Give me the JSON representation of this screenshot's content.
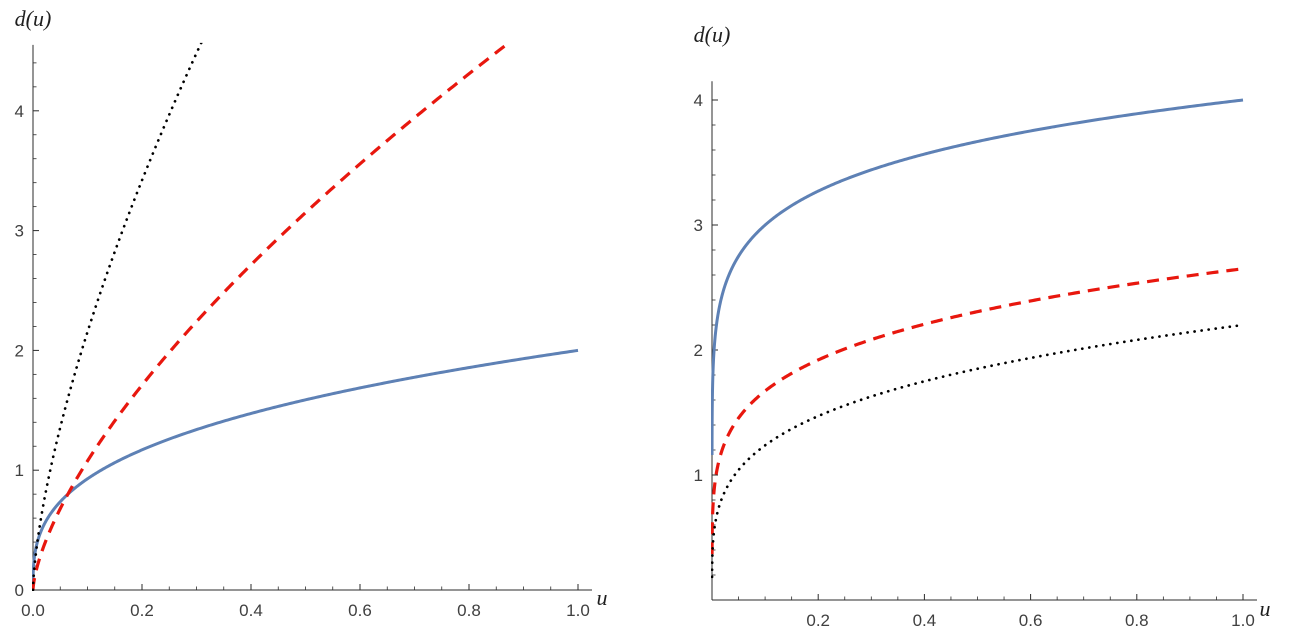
{
  "page": {
    "background": "#ffffff"
  },
  "chart_data": [
    {
      "type": "line",
      "title": "",
      "xlabel": "u",
      "ylabel": "d(u)",
      "xlim": [
        0,
        1
      ],
      "ylim": [
        0,
        4.55
      ],
      "x_ticks": [
        0,
        0.2,
        0.4,
        0.6,
        0.8,
        1
      ],
      "x_tick_labels": [
        "0.0",
        "0.2",
        "0.4",
        "0.6",
        "0.8",
        "1.0"
      ],
      "y_ticks": [
        0,
        1,
        2,
        3,
        4
      ],
      "y_tick_labels": [
        "0",
        "1",
        "2",
        "3",
        "4"
      ],
      "x_minor_step": 0.05,
      "y_minor_step": 0.2,
      "grid": false,
      "legend": "none",
      "series": [
        {
          "name": "blue-solid",
          "style": "solid",
          "color": "#5e81b5",
          "fit": {
            "c": 2,
            "p": 0.3333
          },
          "x": [
            0,
            0.0025,
            0.01,
            0.025,
            0.05,
            0.1,
            0.15,
            0.2,
            0.3,
            0.4,
            0.5,
            0.6,
            0.7,
            0.8,
            0.9,
            1.0
          ],
          "y": [
            0,
            0.27,
            0.43,
            0.58,
            0.74,
            0.93,
            1.06,
            1.17,
            1.34,
            1.47,
            1.59,
            1.69,
            1.78,
            1.86,
            1.93,
            2.0
          ]
        },
        {
          "name": "red-dashed",
          "style": "dashed",
          "color": "#e8170e",
          "fit": {
            "c": 5,
            "p": 0.6667
          },
          "x": [
            0,
            0.0025,
            0.01,
            0.025,
            0.05,
            0.1,
            0.15,
            0.2,
            0.3,
            0.4,
            0.5,
            0.6,
            0.7,
            0.8,
            0.87
          ],
          "y": [
            0,
            0.09,
            0.23,
            0.43,
            0.68,
            1.08,
            1.41,
            1.71,
            2.24,
            2.71,
            3.15,
            3.56,
            3.94,
            4.31,
            4.55
          ]
        },
        {
          "name": "black-dotted",
          "style": "dotted",
          "color": "#000000",
          "fit": {
            "c": 10,
            "p": 0.6667
          },
          "x": [
            0,
            0.0025,
            0.01,
            0.025,
            0.05,
            0.1,
            0.15,
            0.2,
            0.25,
            0.3,
            0.305
          ],
          "y": [
            0,
            0.18,
            0.46,
            0.86,
            1.36,
            2.15,
            2.82,
            3.42,
            3.97,
            4.48,
            4.55
          ]
        }
      ]
    },
    {
      "type": "line",
      "title": "",
      "xlabel": "u",
      "ylabel": "d(u)",
      "xlim": [
        0,
        1
      ],
      "ylim": [
        0,
        4.15
      ],
      "x_ticks": [
        0.2,
        0.4,
        0.6,
        0.8,
        1
      ],
      "x_tick_labels": [
        "0.2",
        "0.4",
        "0.6",
        "0.8",
        "1.0"
      ],
      "y_ticks": [
        1,
        2,
        3,
        4
      ],
      "y_tick_labels": [
        "1",
        "2",
        "3",
        "4"
      ],
      "x_minor_step": 0.05,
      "y_minor_step": 0.2,
      "grid": false,
      "legend": "none",
      "series": [
        {
          "name": "blue-solid",
          "style": "solid",
          "color": "#5e81b5",
          "fit": {
            "c": 4,
            "p": 0.125
          },
          "x": [
            0.0001,
            0.001,
            0.005,
            0.01,
            0.025,
            0.05,
            0.1,
            0.15,
            0.2,
            0.3,
            0.4,
            0.5,
            0.6,
            0.7,
            0.8,
            0.9,
            1.0
          ],
          "y": [
            1.26,
            1.69,
            2.06,
            2.25,
            2.52,
            2.75,
            3.0,
            3.16,
            3.27,
            3.44,
            3.57,
            3.67,
            3.75,
            3.83,
            3.89,
            3.95,
            4.0
          ]
        },
        {
          "name": "red-dashed",
          "style": "dashed",
          "color": "#e8170e",
          "fit": {
            "c": 2.65,
            "p": 0.2
          },
          "x": [
            0.0001,
            0.001,
            0.005,
            0.01,
            0.025,
            0.05,
            0.1,
            0.15,
            0.2,
            0.3,
            0.4,
            0.5,
            0.6,
            0.7,
            0.8,
            0.9,
            1.0
          ],
          "y": [
            0.42,
            0.67,
            0.92,
            1.06,
            1.27,
            1.46,
            1.67,
            1.81,
            1.92,
            2.08,
            2.21,
            2.31,
            2.39,
            2.47,
            2.53,
            2.59,
            2.65
          ]
        },
        {
          "name": "black-dotted",
          "style": "dotted",
          "color": "#000000",
          "fit": {
            "c": 2.2,
            "p": 0.25
          },
          "x": [
            0.0001,
            0.001,
            0.005,
            0.01,
            0.025,
            0.05,
            0.1,
            0.15,
            0.2,
            0.3,
            0.4,
            0.5,
            0.6,
            0.7,
            0.8,
            0.9,
            1.0
          ],
          "y": [
            0.22,
            0.39,
            0.59,
            0.7,
            0.87,
            1.04,
            1.24,
            1.37,
            1.47,
            1.63,
            1.75,
            1.85,
            1.94,
            2.01,
            2.08,
            2.14,
            2.2
          ]
        }
      ]
    }
  ]
}
